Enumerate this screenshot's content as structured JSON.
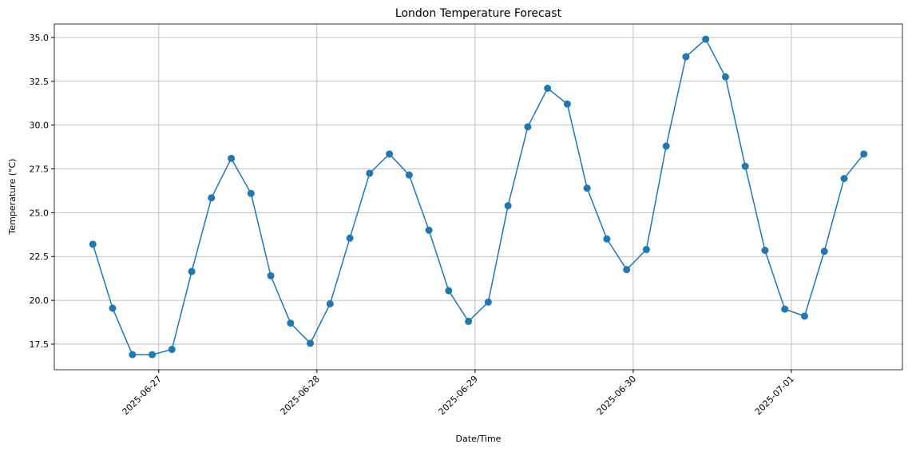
{
  "chart_data": {
    "type": "line",
    "title": "London Temperature Forecast",
    "x_label": "Date/Time",
    "y_label": "Temperature (°C)",
    "x": [
      "2025-06-26T14:00",
      "2025-06-26T17:00",
      "2025-06-26T20:00",
      "2025-06-26T23:00",
      "2025-06-27T02:00",
      "2025-06-27T05:00",
      "2025-06-27T08:00",
      "2025-06-27T11:00",
      "2025-06-27T14:00",
      "2025-06-27T17:00",
      "2025-06-27T20:00",
      "2025-06-27T23:00",
      "2025-06-28T02:00",
      "2025-06-28T05:00",
      "2025-06-28T08:00",
      "2025-06-28T11:00",
      "2025-06-28T14:00",
      "2025-06-28T17:00",
      "2025-06-28T20:00",
      "2025-06-28T23:00",
      "2025-06-29T02:00",
      "2025-06-29T05:00",
      "2025-06-29T08:00",
      "2025-06-29T11:00",
      "2025-06-29T14:00",
      "2025-06-29T17:00",
      "2025-06-29T20:00",
      "2025-06-29T23:00",
      "2025-06-30T02:00",
      "2025-06-30T05:00",
      "2025-06-30T08:00",
      "2025-06-30T11:00",
      "2025-06-30T14:00",
      "2025-06-30T17:00",
      "2025-06-30T20:00",
      "2025-06-30T23:00",
      "2025-07-01T02:00",
      "2025-07-01T05:00",
      "2025-07-01T08:00",
      "2025-07-01T11:00"
    ],
    "series": [
      {
        "color": "#1f77b4",
        "values": [
          23.2,
          19.55,
          16.9,
          16.9,
          17.2,
          21.65,
          25.85,
          28.1,
          26.1,
          21.4,
          18.7,
          17.55,
          19.8,
          23.55,
          27.25,
          28.35,
          27.15,
          24.0,
          20.55,
          18.8,
          19.9,
          25.4,
          29.9,
          32.1,
          31.2,
          26.4,
          23.5,
          21.75,
          22.9,
          28.8,
          33.9,
          34.9,
          32.75,
          27.65,
          22.85,
          19.5,
          19.1,
          22.8,
          26.95,
          28.35
        ]
      }
    ],
    "xlim": [
      "2025-06-26T08:09",
      "2025-07-01T16:51"
    ],
    "xticks": [
      "2025-06-27",
      "2025-06-28",
      "2025-06-29",
      "2025-06-30",
      "2025-07-01"
    ],
    "ylim": [
      16.04,
      35.77
    ],
    "yticks": [
      17.5,
      {
        "value": 20,
        "label": "20.0"
      },
      22.5,
      {
        "value": 25,
        "label": "25.0"
      },
      27.5,
      {
        "value": 30,
        "label": "30.0"
      },
      32.5,
      {
        "value": 35,
        "label": "35.0"
      }
    ],
    "grid": true
  }
}
